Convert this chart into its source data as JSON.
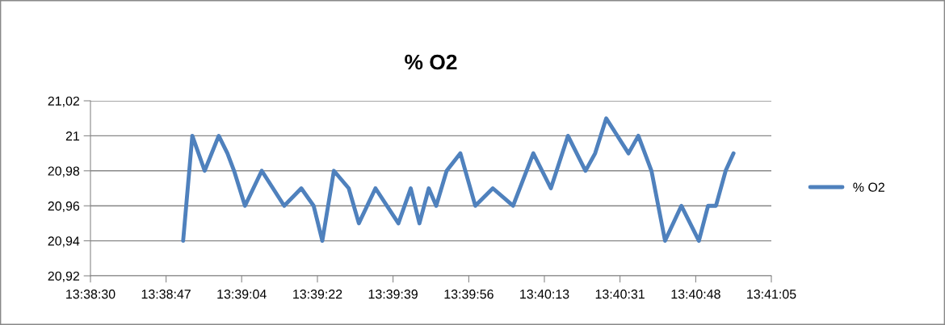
{
  "chart_data": {
    "type": "line",
    "title": "% O2",
    "x": [
      13.64753,
      13.64811,
      13.64889,
      13.64978,
      13.65033,
      13.65075,
      13.65144,
      13.6525,
      13.65392,
      13.655,
      13.65578,
      13.65633,
      13.65706,
      13.658,
      13.65864,
      13.65969,
      13.66114,
      13.66192,
      13.66247,
      13.66306,
      13.66353,
      13.66419,
      13.66506,
      13.666,
      13.66711,
      13.66839,
      13.66967,
      13.67078,
      13.67186,
      13.67297,
      13.67358,
      13.67428,
      13.67569,
      13.67631,
      13.67714,
      13.678,
      13.67903,
      13.68014,
      13.68072,
      13.68122,
      13.68183,
      13.68233
    ],
    "series": [
      {
        "name": "% O2",
        "color": "#4f81bd",
        "values": [
          20.94,
          21.0,
          20.98,
          21.0,
          20.99,
          20.98,
          20.96,
          20.98,
          20.96,
          20.97,
          20.96,
          20.94,
          20.98,
          20.97,
          20.95,
          20.97,
          20.95,
          20.97,
          20.95,
          20.97,
          20.96,
          20.98,
          20.99,
          20.96,
          20.97,
          20.96,
          20.99,
          20.97,
          21.0,
          20.98,
          20.99,
          21.01,
          20.99,
          21.0,
          20.98,
          20.94,
          20.96,
          20.94,
          20.96,
          20.96,
          20.98,
          20.99
        ]
      }
    ],
    "xlim": [
      13.64167,
      13.68472
    ],
    "xticks": [
      {
        "value": 13.64167,
        "label": "13:38:30"
      },
      {
        "value": 13.64645,
        "label": "13:38:47"
      },
      {
        "value": 13.65123,
        "label": "13:39:04"
      },
      {
        "value": 13.65602,
        "label": "13:39:22"
      },
      {
        "value": 13.6608,
        "label": "13:39:39"
      },
      {
        "value": 13.66559,
        "label": "13:39:56"
      },
      {
        "value": 13.67037,
        "label": "13:40:13"
      },
      {
        "value": 13.67515,
        "label": "13:40:31"
      },
      {
        "value": 13.67994,
        "label": "13:40:48"
      },
      {
        "value": 13.68472,
        "label": "13:41:05"
      }
    ],
    "ylim": [
      20.92,
      21.02
    ],
    "yticks": [
      {
        "value": 20.92,
        "label": "20,92"
      },
      {
        "value": 20.94,
        "label": "20,94"
      },
      {
        "value": 20.96,
        "label": "20,96"
      },
      {
        "value": 20.98,
        "label": "20,98"
      },
      {
        "value": 21.0,
        "label": "21"
      },
      {
        "value": 21.02,
        "label": "21,02"
      }
    ],
    "grid": "y",
    "legend": "right",
    "marker": "none",
    "line_style": "solid"
  }
}
